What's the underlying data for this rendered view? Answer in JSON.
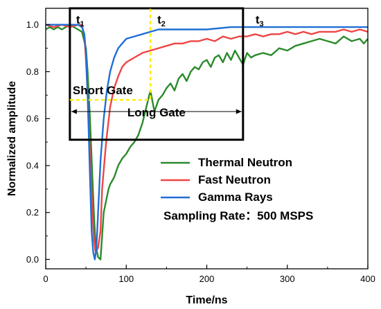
{
  "chart_data": {
    "type": "line",
    "title": "",
    "xlabel": "Time/ns",
    "ylabel": "Normalized amplitude",
    "xlim": [
      0,
      400
    ],
    "ylim": [
      -0.04,
      1.07
    ],
    "xticks": [
      0,
      100,
      200,
      300,
      400
    ],
    "yticks": [
      0.0,
      0.2,
      0.4,
      0.6,
      0.8,
      1.0
    ],
    "xtick_labels": [
      "0",
      "100",
      "200",
      "300",
      "400"
    ],
    "ytick_labels": [
      "0.0",
      "0.2",
      "0.4",
      "0.6",
      "0.8",
      "1.0"
    ],
    "grid": false,
    "legend_position": "lower-right",
    "series": [
      {
        "name": "Thermal Neutron",
        "color": "#2a8a2a",
        "x": [
          0,
          5,
          10,
          15,
          20,
          25,
          30,
          35,
          40,
          45,
          50,
          52,
          55,
          58,
          60,
          62,
          65,
          68,
          70,
          72,
          75,
          78,
          80,
          85,
          90,
          95,
          100,
          105,
          110,
          115,
          120,
          125,
          130,
          135,
          140,
          145,
          150,
          155,
          160,
          165,
          170,
          175,
          180,
          185,
          190,
          195,
          200,
          205,
          210,
          215,
          220,
          225,
          230,
          235,
          240,
          245,
          250,
          255,
          260,
          270,
          280,
          290,
          300,
          310,
          320,
          330,
          340,
          350,
          360,
          370,
          380,
          390,
          395,
          400
        ],
        "y": [
          0.98,
          0.99,
          0.98,
          0.99,
          0.98,
          0.99,
          1.0,
          0.99,
          0.98,
          0.97,
          0.9,
          0.8,
          0.6,
          0.35,
          0.18,
          0.06,
          0.01,
          0.0,
          0.1,
          0.2,
          0.25,
          0.3,
          0.32,
          0.35,
          0.4,
          0.43,
          0.45,
          0.48,
          0.5,
          0.53,
          0.58,
          0.65,
          0.72,
          0.63,
          0.68,
          0.7,
          0.73,
          0.75,
          0.72,
          0.77,
          0.79,
          0.76,
          0.8,
          0.82,
          0.81,
          0.84,
          0.85,
          0.82,
          0.86,
          0.87,
          0.84,
          0.88,
          0.85,
          0.89,
          0.86,
          0.83,
          0.88,
          0.86,
          0.87,
          0.88,
          0.87,
          0.9,
          0.89,
          0.91,
          0.92,
          0.93,
          0.94,
          0.93,
          0.92,
          0.95,
          0.93,
          0.94,
          0.92,
          0.94
        ]
      },
      {
        "name": "Fast Neutron",
        "color": "#ef4444",
        "x": [
          0,
          10,
          20,
          30,
          40,
          45,
          48,
          50,
          52,
          55,
          58,
          60,
          62,
          65,
          68,
          70,
          75,
          80,
          85,
          90,
          95,
          100,
          110,
          120,
          130,
          140,
          150,
          160,
          170,
          180,
          190,
          200,
          210,
          220,
          230,
          240,
          250,
          260,
          270,
          280,
          290,
          300,
          310,
          320,
          330,
          340,
          350,
          360,
          370,
          380,
          390,
          400
        ],
        "y": [
          1.0,
          0.99,
          1.0,
          0.99,
          1.0,
          1.0,
          0.95,
          0.85,
          0.7,
          0.45,
          0.2,
          0.08,
          0.03,
          0.05,
          0.12,
          0.3,
          0.5,
          0.65,
          0.73,
          0.78,
          0.82,
          0.84,
          0.86,
          0.88,
          0.89,
          0.9,
          0.91,
          0.92,
          0.92,
          0.93,
          0.93,
          0.94,
          0.93,
          0.95,
          0.94,
          0.95,
          0.95,
          0.96,
          0.95,
          0.96,
          0.96,
          0.97,
          0.96,
          0.97,
          0.96,
          0.97,
          0.97,
          0.97,
          0.98,
          0.97,
          0.98,
          0.97
        ]
      },
      {
        "name": "Gamma Rays",
        "color": "#1f6fd4",
        "x": [
          0,
          10,
          20,
          30,
          40,
          45,
          48,
          50,
          52,
          55,
          57,
          59,
          61,
          63,
          65,
          68,
          72,
          76,
          80,
          85,
          90,
          95,
          100,
          110,
          120,
          130,
          140,
          150,
          170,
          200,
          230,
          260,
          300,
          340,
          370,
          390,
          400
        ],
        "y": [
          1.0,
          1.0,
          1.0,
          1.0,
          1.0,
          0.99,
          0.96,
          0.88,
          0.7,
          0.35,
          0.12,
          0.03,
          0.0,
          0.05,
          0.2,
          0.42,
          0.6,
          0.72,
          0.8,
          0.86,
          0.9,
          0.92,
          0.94,
          0.95,
          0.96,
          0.97,
          0.98,
          0.98,
          0.98,
          0.98,
          0.99,
          0.99,
          0.99,
          0.99,
          0.99,
          0.99,
          0.99
        ]
      }
    ],
    "annotations": {
      "t1": {
        "label": "t",
        "sub": "1",
        "x": 30
      },
      "t2": {
        "label": "t",
        "sub": "2",
        "x": 130
      },
      "t3": {
        "label": "t",
        "sub": "3",
        "x": 245
      },
      "short_gate": {
        "label": "Short Gate",
        "x_start": 30,
        "x_end": 130,
        "y": 0.68
      },
      "long_gate": {
        "label": "Long Gate",
        "x_start": 30,
        "x_end": 245,
        "y": 0.63
      },
      "gate_box": {
        "x_start": 30,
        "x_end": 245,
        "y_bottom": 0.51
      },
      "sampling_rate": "Sampling Rate：500 MSPS"
    }
  }
}
